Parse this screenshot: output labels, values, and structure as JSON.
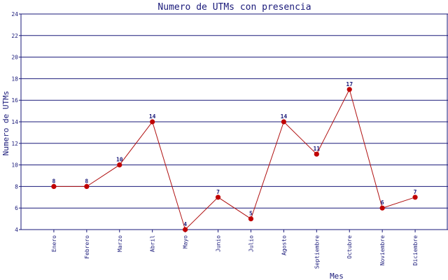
{
  "chart_data": {
    "type": "line",
    "title": "Numero de UTMs con presencia",
    "xlabel": "Mes",
    "ylabel": "Numero de UTMs",
    "categories": [
      "Enero",
      "Febrero",
      "Marzo",
      "Abril",
      "Mayo",
      "Junio",
      "Julio",
      "Agosto",
      "Septiembre",
      "Octubre",
      "Noviembre",
      "Diciembre"
    ],
    "values": [
      8,
      8,
      10,
      14,
      4,
      7,
      5,
      14,
      11,
      17,
      6,
      7
    ],
    "data_labels": [
      "8",
      "8",
      "10",
      "14",
      "4",
      "7",
      "5",
      "14",
      "11",
      "17",
      "6",
      "7"
    ],
    "ylim": [
      4,
      24
    ],
    "yticks": [
      "4",
      "6",
      "8",
      "10",
      "12",
      "14",
      "16",
      "18",
      "20",
      "22",
      "24"
    ],
    "grid": true,
    "colors": {
      "line": "#b01010",
      "marker": "#c00000",
      "grid": "#1a1a7a",
      "axis": "#1a1a7a",
      "text": "#1a1a7a"
    }
  }
}
